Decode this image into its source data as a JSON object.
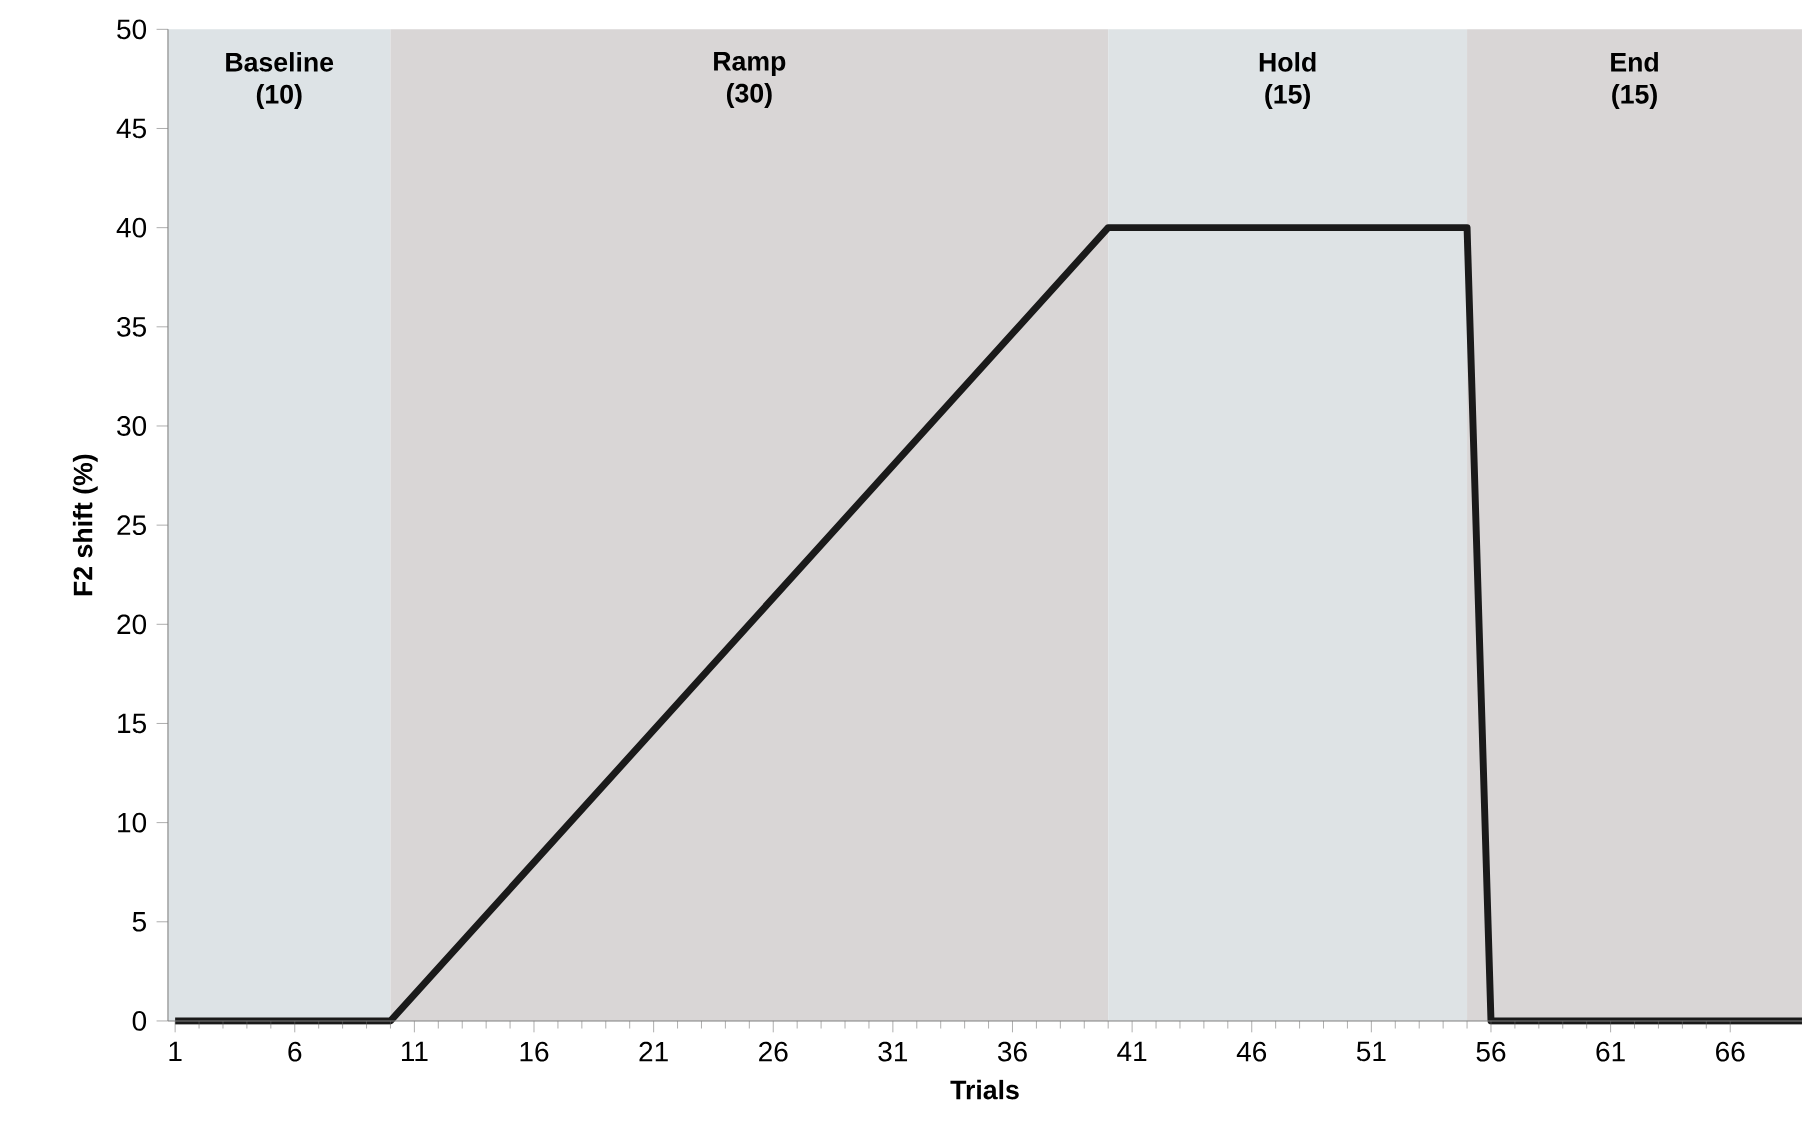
{
  "chart_data": {
    "type": "line",
    "xlabel": "Trials",
    "ylabel": "F2 shift  (%)",
    "x": [
      1,
      10,
      40,
      55,
      56,
      69
    ],
    "series": [
      {
        "color": "#1a1a1a",
        "values": [
          0,
          0,
          40,
          40,
          0,
          0
        ]
      }
    ],
    "xlim": [
      0.7,
      69
    ],
    "ylim": [
      0,
      50
    ],
    "xticks": [
      1,
      6,
      11,
      16,
      21,
      26,
      31,
      36,
      41,
      46,
      51,
      56,
      61,
      66
    ],
    "yticks": [
      0,
      5,
      10,
      15,
      20,
      25,
      30,
      35,
      40,
      45,
      50
    ],
    "bands": [
      {
        "axis": "x",
        "from": 0.7,
        "to": 10,
        "label": "Baseline (10)",
        "color": "#dde3e6"
      },
      {
        "axis": "x",
        "from": 10,
        "to": 40,
        "label": "Ramp (30)",
        "color": "#d9d6d6"
      },
      {
        "axis": "x",
        "from": 40,
        "to": 55,
        "label": "Hold (15)",
        "color": "#dee3e5"
      },
      {
        "axis": "x",
        "from": 55,
        "to": 69,
        "label": "End (15)",
        "color": "#d9d6d6"
      }
    ],
    "grid": false,
    "marker": "none",
    "line_style": "solid"
  }
}
